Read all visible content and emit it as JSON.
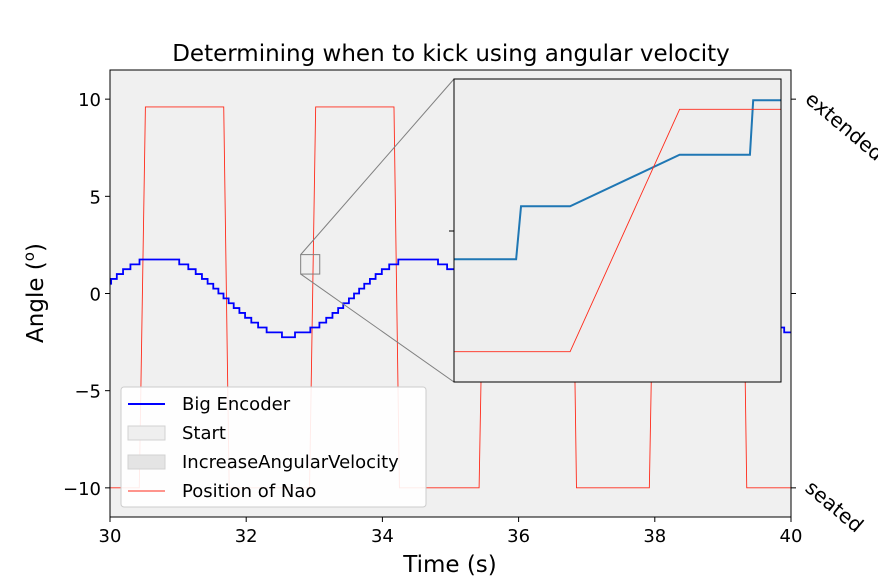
{
  "chart_data": {
    "type": "line",
    "title": "Determining when to kick using angular velocity",
    "xlabel": "Time (s)",
    "ylabel": "Angle (",
    "ylabel_sup": "o",
    "ylabel_close": ")",
    "xlim": [
      30,
      40
    ],
    "ylim": [
      -11.5,
      11.5
    ],
    "x_ticks": [
      30,
      32,
      34,
      36,
      38,
      40
    ],
    "x_tick_labels": [
      "30",
      "32",
      "34",
      "36",
      "38",
      "40"
    ],
    "y_ticks": [
      10,
      5,
      0,
      -5,
      -10
    ],
    "y_tick_labels": [
      "10",
      "5",
      "0",
      "−5",
      "−10"
    ],
    "right_axis_labels": [
      {
        "text": "extended",
        "y": 10
      },
      {
        "text": "seated",
        "y": -10
      }
    ],
    "legend": {
      "placement": "lower-left",
      "entries": [
        {
          "label": "Big Encoder",
          "style": "line",
          "color": "#0000ff"
        },
        {
          "label": "Start",
          "style": "patch",
          "color": "#efefef"
        },
        {
          "label": "IncreaseAngularVelocity",
          "style": "patch",
          "color": "#e4e4e4"
        },
        {
          "label": "Position of Nao",
          "style": "line",
          "color": "#ff2a1a"
        }
      ]
    },
    "series": [
      {
        "name": "Big Encoder",
        "color": "#0000ff",
        "kind": "sine",
        "amplitude": 2.0,
        "offset": -0.15,
        "period": 3.8,
        "phase_zero_time": 29.77,
        "quantization": 0.25,
        "x_range": [
          30,
          40
        ]
      },
      {
        "name": "Position of Nao",
        "color": "#ff2a1a",
        "x": [
          30,
          30.43,
          30.52,
          31.67,
          31.75,
          32.93,
          33.02,
          34.17,
          34.25,
          35.42,
          35.52,
          36.77,
          36.85,
          37.92,
          38.02,
          39.27,
          39.35,
          40
        ],
        "y": [
          -10,
          -10,
          9.6,
          9.6,
          -10,
          -10,
          9.6,
          9.6,
          -10,
          -10,
          9.6,
          9.6,
          -10,
          -10,
          9.6,
          9.6,
          -10,
          -10
        ]
      }
    ],
    "inset": {
      "source_xlim": [
        32.8,
        33.08
      ],
      "source_ylim": [
        1.0,
        2.0
      ],
      "view_xlim": [
        0,
        1
      ],
      "view_ylim": [
        0,
        1
      ],
      "series": [
        {
          "name": "Big Encoder",
          "color": "#1f77b4",
          "x": [
            0,
            0.19,
            0.205,
            0.355,
            0.69,
            0.905,
            0.915,
            1
          ],
          "y": [
            0.405,
            0.405,
            0.58,
            0.58,
            0.75,
            0.75,
            0.93,
            0.93
          ]
        },
        {
          "name": "Position of Nao",
          "color": "#ff2a1a",
          "x": [
            0,
            0.355,
            0.69,
            1
          ],
          "y": [
            0.1,
            0.1,
            0.9,
            0.9
          ]
        }
      ]
    }
  }
}
